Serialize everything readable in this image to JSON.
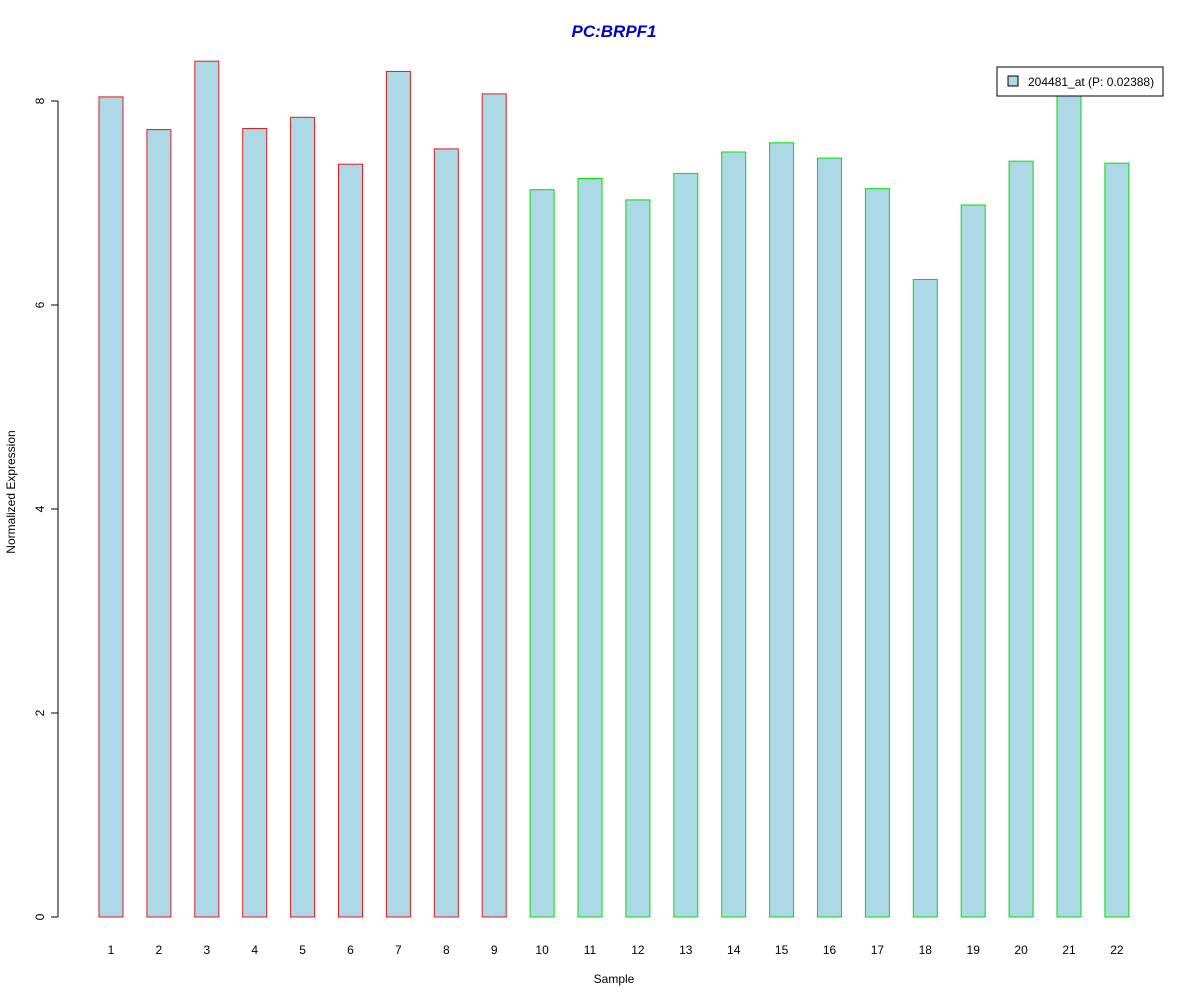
{
  "chart_data": {
    "type": "bar",
    "title": "PC:BRPF1",
    "xlabel": "Sample",
    "ylabel": "Normalized Expression",
    "categories": [
      "1",
      "2",
      "3",
      "4",
      "5",
      "6",
      "7",
      "8",
      "9",
      "10",
      "11",
      "12",
      "13",
      "14",
      "15",
      "16",
      "17",
      "18",
      "19",
      "20",
      "21",
      "22"
    ],
    "series": [
      {
        "name": "204481_at (P: 0.02388)",
        "values": [
          8.04,
          7.72,
          8.39,
          7.73,
          7.84,
          7.38,
          8.29,
          7.53,
          8.07,
          7.13,
          7.24,
          7.03,
          7.29,
          7.5,
          7.59,
          7.44,
          7.14,
          6.25,
          6.98,
          7.41,
          8.05,
          7.39
        ]
      }
    ],
    "group_outline_colors": [
      "#e41a1c",
      "#e41a1c",
      "#e41a1c",
      "#e41a1c",
      "#e41a1c",
      "#e41a1c",
      "#e41a1c",
      "#e41a1c",
      "#e41a1c",
      "#00e000",
      "#00e000",
      "#00e000",
      "#00e000",
      "#00e000",
      "#00e000",
      "#00e000",
      "#00e000",
      "#00e000",
      "#00e000",
      "#00e000",
      "#00e000",
      "#00e000"
    ],
    "bar_fill": "#add8e6",
    "title_color": "#0000cc",
    "ylim": [
      0,
      8.4
    ],
    "yticks": [
      0,
      2,
      4,
      6,
      8
    ],
    "legend_position": "top-right",
    "grid": false
  }
}
